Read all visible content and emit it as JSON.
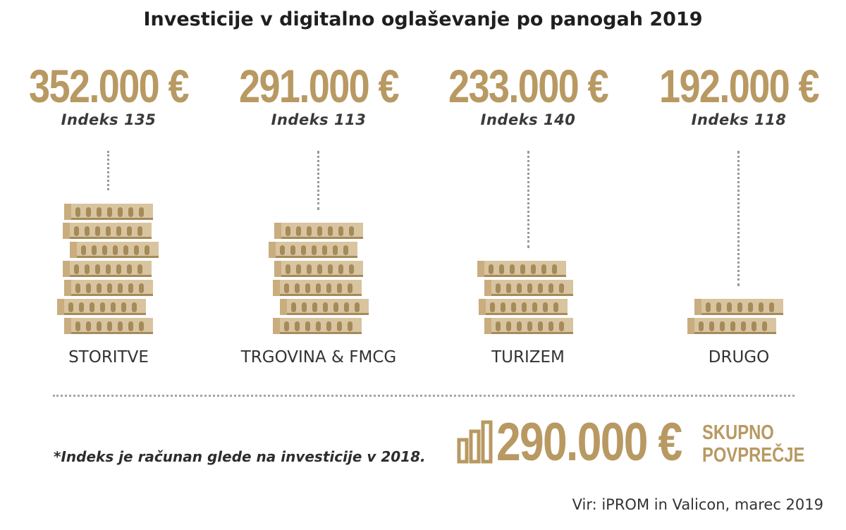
{
  "chart_data": {
    "type": "pictogram-bar",
    "title": "Investicije v digitalno oglaševanje po panogah 2019",
    "unit": "€",
    "categories": [
      "STORITVE",
      "TRGOVINA & FMCG",
      "TURIZEM",
      "DRUGO"
    ],
    "values": [
      352000,
      291000,
      233000,
      192000
    ],
    "value_labels": [
      "352.000 €",
      "291.000 €",
      "233.000 €",
      "192.000 €"
    ],
    "index_labels": [
      "Indeks 135",
      "Indeks 113",
      "Indeks 140",
      "Indeks 118"
    ],
    "index_values": [
      135,
      113,
      140,
      118
    ],
    "coin_stack_counts": [
      7,
      6,
      4,
      2
    ],
    "total": {
      "value": 290000,
      "value_label": "290.000 €",
      "label_line1": "SKUPNO",
      "label_line2": "POVPREČJE"
    },
    "footnote": "*Indeks je računan glede na investicije v 2018.",
    "source": "Vir: iPROM in Valicon, marec 2019",
    "colors": {
      "accent": "#b89962",
      "coin_light": "#d9c4a0",
      "coin_mid": "#c9ad7e",
      "coin_dark": "#a58a5a",
      "text": "#333333"
    }
  }
}
